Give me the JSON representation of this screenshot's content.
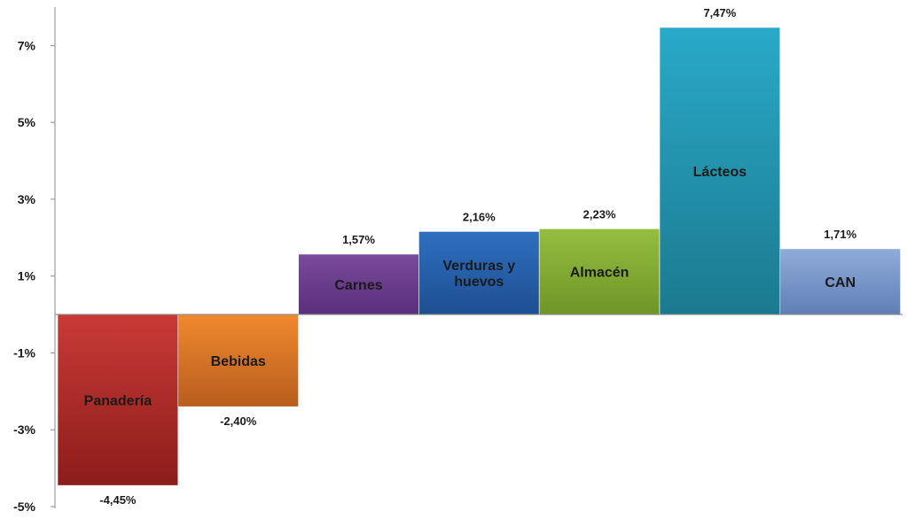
{
  "chart_data": {
    "type": "bar",
    "categories": [
      "Panadería",
      "Bebidas",
      "Carnes",
      "Verduras y huevos",
      "Almacén",
      "Lácteos",
      "CAN"
    ],
    "values": [
      -4.45,
      -2.4,
      1.57,
      2.16,
      2.23,
      7.47,
      1.71
    ],
    "value_labels": [
      "-4,45%",
      "-2,40%",
      "1,57%",
      "2,16%",
      "2,23%",
      "7,47%",
      "1,71%"
    ],
    "category_label_lines": [
      [
        "Panadería"
      ],
      [
        "Bebidas"
      ],
      [
        "Carnes"
      ],
      [
        "Verduras y",
        "huevos"
      ],
      [
        "Almacén"
      ],
      [
        "Lácteos"
      ],
      [
        "CAN"
      ]
    ],
    "colors": [
      [
        "#c93a36",
        "#8c1d1b"
      ],
      [
        "#f0892e",
        "#b85d1e"
      ],
      [
        "#7a4a9c",
        "#5a2f7c"
      ],
      [
        "#2f6fc0",
        "#1d4f92"
      ],
      [
        "#95bd3e",
        "#6f9528"
      ],
      [
        "#2aa9c9",
        "#1b7a8f"
      ],
      [
        "#8fabd8",
        "#5f7fb5"
      ]
    ],
    "y_ticks": [
      -5,
      -3,
      -1,
      1,
      3,
      5,
      7
    ],
    "y_tick_labels": [
      "-5%",
      "-3%",
      "-1%",
      "1%",
      "3%",
      "5%",
      "7%"
    ],
    "ylim": [
      -5,
      8
    ],
    "grid": false,
    "legend": "none",
    "title": "",
    "xlabel": "",
    "ylabel": ""
  }
}
